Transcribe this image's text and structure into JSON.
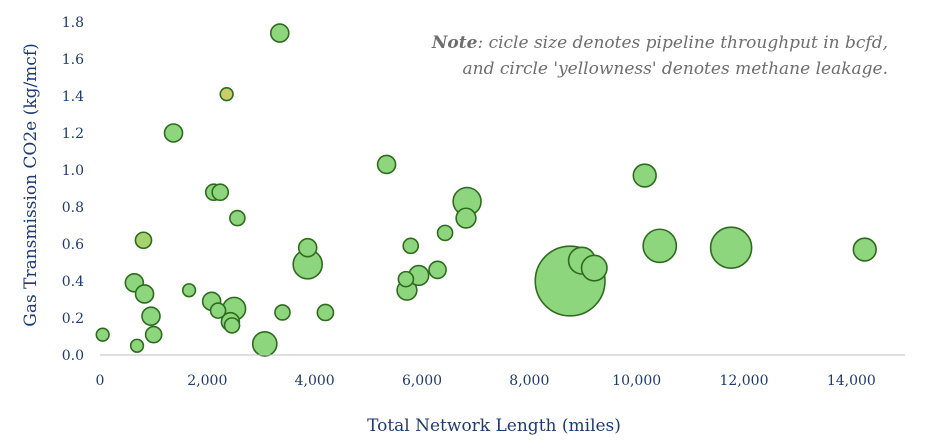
{
  "note": {
    "lead": "Note",
    "line1": ": cicle size denotes pipeline throughput in bcfd,",
    "line2": "and circle 'yellowness' denotes methane leakage."
  },
  "chart_data": {
    "type": "scatter",
    "xlabel": "Total Network Length (miles)",
    "ylabel": "Gas Transmission CO2e (kg/mcf)",
    "xlim": [
      0,
      15000
    ],
    "ylim": [
      0,
      1.8
    ],
    "xticks": [
      0,
      2000,
      4000,
      6000,
      8000,
      10000,
      12000,
      14000
    ],
    "xtick_labels": [
      "0",
      "2,000",
      "4,000",
      "6,000",
      "8,000",
      "10,000",
      "12,000",
      "14,000"
    ],
    "yticks": [
      0,
      0.2,
      0.4,
      0.6,
      0.8,
      1.0,
      1.2,
      1.4,
      1.6,
      1.8
    ],
    "ytick_labels": [
      "0.0",
      "0.2",
      "0.4",
      "0.6",
      "0.8",
      "1.0",
      "1.2",
      "1.4",
      "1.6",
      "1.8"
    ],
    "grid": false,
    "colors": {
      "fill": "#8ed67e",
      "edge": "#2f6b1f",
      "yellow_fill": "#c8cf6a",
      "axis_text": "#1f3a6e"
    },
    "points": [
      {
        "x": 50,
        "y": 0.11,
        "size": 0.5,
        "yellow": 0
      },
      {
        "x": 640,
        "y": 0.39,
        "size": 1.0,
        "yellow": 0
      },
      {
        "x": 690,
        "y": 0.05,
        "size": 0.5,
        "yellow": 0
      },
      {
        "x": 810,
        "y": 0.62,
        "size": 0.8,
        "yellow": 0.4
      },
      {
        "x": 830,
        "y": 0.33,
        "size": 1.0,
        "yellow": 0
      },
      {
        "x": 950,
        "y": 0.21,
        "size": 1.0,
        "yellow": 0
      },
      {
        "x": 1000,
        "y": 0.11,
        "size": 0.8,
        "yellow": 0
      },
      {
        "x": 1370,
        "y": 1.2,
        "size": 1.0,
        "yellow": 0
      },
      {
        "x": 1660,
        "y": 0.35,
        "size": 0.5,
        "yellow": 0
      },
      {
        "x": 2080,
        "y": 0.29,
        "size": 1.0,
        "yellow": 0
      },
      {
        "x": 2120,
        "y": 0.88,
        "size": 0.8,
        "yellow": 0
      },
      {
        "x": 2200,
        "y": 0.24,
        "size": 0.7,
        "yellow": 0
      },
      {
        "x": 2240,
        "y": 0.88,
        "size": 0.8,
        "yellow": 0
      },
      {
        "x": 2360,
        "y": 1.41,
        "size": 0.5,
        "yellow": 0.7
      },
      {
        "x": 2430,
        "y": 0.18,
        "size": 1.0,
        "yellow": 0
      },
      {
        "x": 2460,
        "y": 0.16,
        "size": 0.7,
        "yellow": 0
      },
      {
        "x": 2500,
        "y": 0.25,
        "size": 1.6,
        "yellow": 0
      },
      {
        "x": 2560,
        "y": 0.74,
        "size": 0.7,
        "yellow": 0
      },
      {
        "x": 3070,
        "y": 0.06,
        "size": 1.8,
        "yellow": 0
      },
      {
        "x": 3350,
        "y": 1.74,
        "size": 1.0,
        "yellow": 0
      },
      {
        "x": 3400,
        "y": 0.23,
        "size": 0.7,
        "yellow": 0
      },
      {
        "x": 3870,
        "y": 0.58,
        "size": 1.0,
        "yellow": 0
      },
      {
        "x": 3870,
        "y": 0.49,
        "size": 2.6,
        "yellow": 0
      },
      {
        "x": 4200,
        "y": 0.23,
        "size": 0.8,
        "yellow": 0
      },
      {
        "x": 5340,
        "y": 1.03,
        "size": 1.0,
        "yellow": 0
      },
      {
        "x": 5700,
        "y": 0.41,
        "size": 0.7,
        "yellow": 0
      },
      {
        "x": 5720,
        "y": 0.35,
        "size": 1.2,
        "yellow": 0
      },
      {
        "x": 5790,
        "y": 0.59,
        "size": 0.7,
        "yellow": 0
      },
      {
        "x": 5940,
        "y": 0.43,
        "size": 1.2,
        "yellow": 0
      },
      {
        "x": 6290,
        "y": 0.46,
        "size": 0.9,
        "yellow": 0
      },
      {
        "x": 6430,
        "y": 0.66,
        "size": 0.7,
        "yellow": 0
      },
      {
        "x": 6820,
        "y": 0.74,
        "size": 1.2,
        "yellow": 0
      },
      {
        "x": 6840,
        "y": 0.83,
        "size": 2.4,
        "yellow": 0
      },
      {
        "x": 8760,
        "y": 0.4,
        "size": 15.0,
        "yellow": 0
      },
      {
        "x": 8980,
        "y": 0.51,
        "size": 2.2,
        "yellow": 0
      },
      {
        "x": 9210,
        "y": 0.47,
        "size": 2.0,
        "yellow": 0
      },
      {
        "x": 10150,
        "y": 0.97,
        "size": 1.6,
        "yellow": 0
      },
      {
        "x": 10430,
        "y": 0.59,
        "size": 3.4,
        "yellow": 0
      },
      {
        "x": 11760,
        "y": 0.58,
        "size": 5.2,
        "yellow": 0
      },
      {
        "x": 14250,
        "y": 0.57,
        "size": 1.6,
        "yellow": 0
      }
    ]
  }
}
